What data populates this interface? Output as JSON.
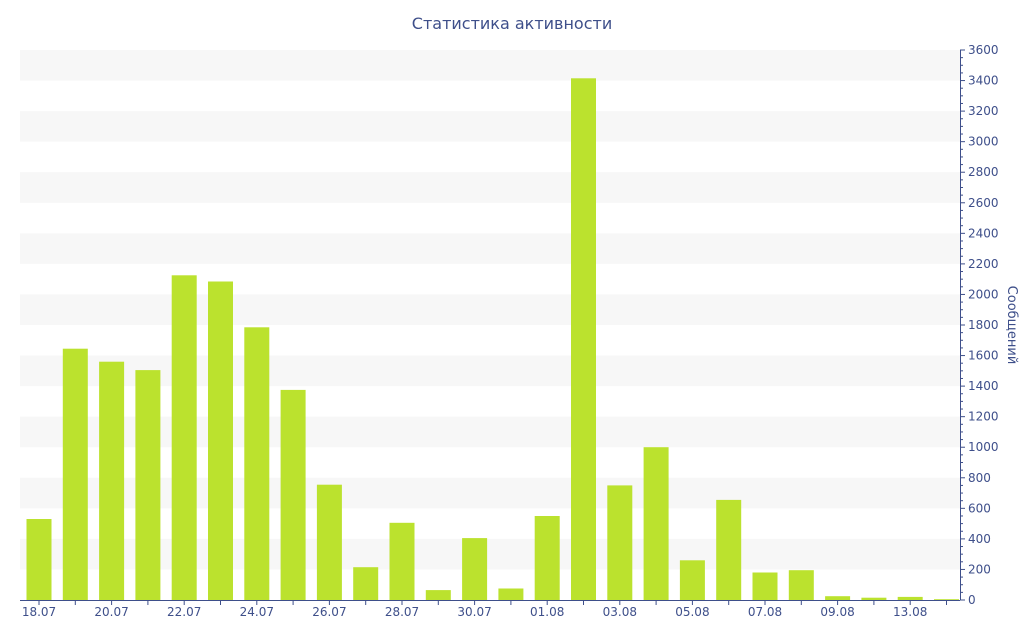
{
  "chart_data": {
    "type": "bar",
    "title": "Статистика активности",
    "ylabel": "Сообщений",
    "xlabel": "",
    "ylim": [
      0,
      3600
    ],
    "y_ticks": [
      0,
      200,
      400,
      600,
      800,
      1000,
      1200,
      1400,
      1600,
      1800,
      2000,
      2200,
      2400,
      2600,
      2800,
      3000,
      3200,
      3400,
      3600
    ],
    "y_axis_side": "right",
    "grid": "alternating horizontal bands",
    "categories": [
      "18.07",
      "19.07",
      "20.07",
      "21.07",
      "22.07",
      "23.07",
      "24.07",
      "25.07",
      "26.07",
      "27.07",
      "28.07",
      "29.07",
      "30.07",
      "31.07",
      "01.08",
      "02.08",
      "03.08",
      "04.08",
      "05.08",
      "06.08",
      "07.08",
      "08.08",
      "09.08",
      "10.08",
      "13.08",
      "14.08"
    ],
    "x_tick_labels": [
      "18.07",
      "20.07",
      "22.07",
      "24.07",
      "26.07",
      "28.07",
      "30.07",
      "01.08",
      "03.08",
      "05.08",
      "07.08",
      "09.08",
      "13.08"
    ],
    "values": [
      530,
      1645,
      1560,
      1505,
      2125,
      2085,
      1785,
      1375,
      755,
      215,
      505,
      65,
      405,
      75,
      550,
      3415,
      750,
      1000,
      260,
      655,
      180,
      195,
      25,
      15,
      20,
      5
    ],
    "bar_color": "#bbe22e"
  }
}
